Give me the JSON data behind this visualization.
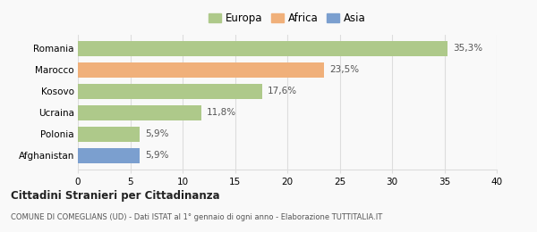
{
  "categories": [
    "Romania",
    "Marocco",
    "Kosovo",
    "Ucraina",
    "Polonia",
    "Afghanistan"
  ],
  "values": [
    35.3,
    23.5,
    17.6,
    11.8,
    5.9,
    5.9
  ],
  "labels": [
    "35,3%",
    "23,5%",
    "17,6%",
    "11,8%",
    "5,9%",
    "5,9%"
  ],
  "bar_colors": [
    "#aec98a",
    "#f0b07a",
    "#aec98a",
    "#aec98a",
    "#aec98a",
    "#7b9fcf"
  ],
  "legend_items": [
    {
      "label": "Europa",
      "color": "#aec98a"
    },
    {
      "label": "Africa",
      "color": "#f0b07a"
    },
    {
      "label": "Asia",
      "color": "#7b9fcf"
    }
  ],
  "xlim": [
    0,
    40
  ],
  "xticks": [
    0,
    5,
    10,
    15,
    20,
    25,
    30,
    35,
    40
  ],
  "title": "Cittadini Stranieri per Cittadinanza",
  "subtitle": "COMUNE DI COMEGLIANS (UD) - Dati ISTAT al 1° gennaio di ogni anno - Elaborazione TUTTITALIA.IT",
  "background_color": "#f9f9f9",
  "grid_color": "#dddddd"
}
